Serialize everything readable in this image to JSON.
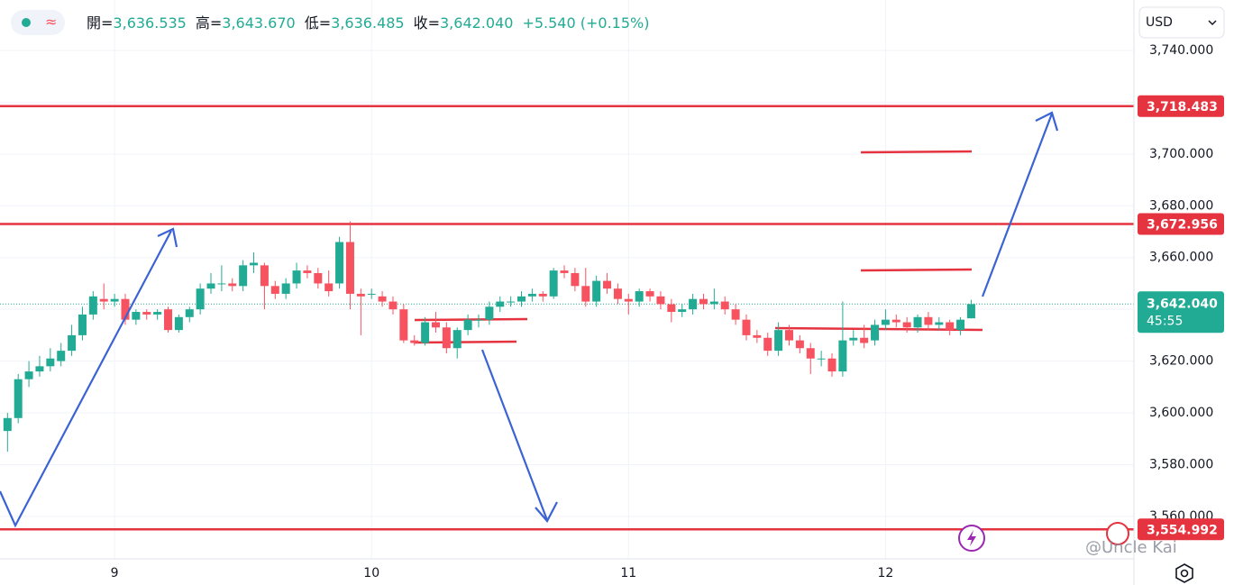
{
  "chart_data": {
    "type": "candlestick",
    "header": {
      "items": [
        {
          "label": "開=",
          "value": "3,636.535"
        },
        {
          "label": "高=",
          "value": "3,643.670"
        },
        {
          "label": "低=",
          "value": "3,636.485"
        },
        {
          "label": "收=",
          "value": "3,642.040"
        }
      ],
      "change": "+5.540 (+0.15%)"
    },
    "currency": "USD",
    "watermark": "@Uncle Kai",
    "up_color": "#22ab94",
    "down_color": "#f7525f",
    "level_color": "#e5333f",
    "x": [
      -10,
      -9,
      -8,
      -7,
      -6,
      -5,
      -4,
      -3,
      -2,
      -1,
      0,
      1,
      2,
      3,
      4,
      5,
      6,
      7,
      8,
      9,
      10,
      11,
      12,
      13,
      14,
      15,
      16,
      17,
      18,
      19,
      20,
      21,
      22,
      23,
      24,
      25,
      26,
      27,
      28,
      29,
      30,
      31,
      32,
      33,
      34,
      35,
      36,
      37,
      38,
      39,
      40,
      41,
      42,
      43,
      44,
      45,
      46,
      47,
      48,
      49,
      50,
      51,
      52,
      53,
      54,
      55,
      56,
      57,
      58,
      59,
      60,
      61,
      62,
      63,
      64,
      65,
      66,
      67,
      68,
      69,
      70,
      71,
      72,
      73,
      74,
      75,
      76,
      77,
      78,
      79,
      80
    ],
    "ohlc": [
      [
        3593,
        3600,
        3585,
        3598
      ],
      [
        3598,
        3615,
        3596,
        3613
      ],
      [
        3613,
        3620,
        3610,
        3616
      ],
      [
        3616,
        3622,
        3614,
        3618
      ],
      [
        3618,
        3625,
        3616,
        3621
      ],
      [
        3620,
        3627,
        3618,
        3624
      ],
      [
        3624,
        3634,
        3622,
        3630
      ],
      [
        3630,
        3641,
        3628,
        3638
      ],
      [
        3638,
        3647,
        3636,
        3645
      ],
      [
        3644,
        3650,
        3640,
        3643
      ],
      [
        3643,
        3646,
        3641,
        3644
      ],
      [
        3644,
        3646,
        3634,
        3636
      ],
      [
        3636,
        3640,
        3634,
        3639
      ],
      [
        3639,
        3640,
        3636,
        3638
      ],
      [
        3638,
        3640,
        3636,
        3639
      ],
      [
        3640,
        3641,
        3631,
        3632
      ],
      [
        3632,
        3638,
        3631,
        3637
      ],
      [
        3637,
        3641,
        3635,
        3640
      ],
      [
        3640,
        3650,
        3638,
        3648
      ],
      [
        3648,
        3654,
        3646,
        3650
      ],
      [
        3650,
        3657,
        3647,
        3650
      ],
      [
        3650,
        3652,
        3647,
        3649
      ],
      [
        3649,
        3659,
        3647,
        3657
      ],
      [
        3657,
        3662,
        3654,
        3658
      ],
      [
        3657,
        3658,
        3640,
        3649
      ],
      [
        3649,
        3651,
        3644,
        3646
      ],
      [
        3646,
        3652,
        3644,
        3650
      ],
      [
        3650,
        3658,
        3648,
        3655
      ],
      [
        3655,
        3657,
        3652,
        3654
      ],
      [
        3654,
        3656,
        3648,
        3650
      ],
      [
        3650,
        3655,
        3645,
        3647
      ],
      [
        3650,
        3668,
        3648,
        3666
      ],
      [
        3666,
        3674,
        3640,
        3646
      ],
      [
        3646,
        3648,
        3630,
        3645
      ],
      [
        3646,
        3648,
        3644,
        3646
      ],
      [
        3645,
        3647,
        3641,
        3643
      ],
      [
        3643,
        3645,
        3638,
        3640
      ],
      [
        3640,
        3642,
        3627,
        3628
      ],
      [
        3628,
        3630,
        3626,
        3627
      ],
      [
        3627,
        3637,
        3626,
        3635
      ],
      [
        3635,
        3639,
        3631,
        3633
      ],
      [
        3633,
        3635,
        3623,
        3625
      ],
      [
        3625,
        3633,
        3621,
        3632
      ],
      [
        3632,
        3638,
        3630,
        3636
      ],
      [
        3636,
        3638,
        3633,
        3636
      ],
      [
        3636,
        3643,
        3634,
        3641
      ],
      [
        3641,
        3645,
        3639,
        3643
      ],
      [
        3643,
        3645,
        3641,
        3643
      ],
      [
        3643,
        3647,
        3641,
        3645
      ],
      [
        3645,
        3648,
        3643,
        3646
      ],
      [
        3646,
        3647,
        3643,
        3645
      ],
      [
        3645,
        3656,
        3644,
        3655
      ],
      [
        3655,
        3657,
        3652,
        3654
      ],
      [
        3654,
        3656,
        3647,
        3649
      ],
      [
        3649,
        3656,
        3641,
        3643
      ],
      [
        3643,
        3653,
        3641,
        3651
      ],
      [
        3651,
        3654,
        3646,
        3648
      ],
      [
        3648,
        3650,
        3642,
        3644
      ],
      [
        3644,
        3646,
        3638,
        3643
      ],
      [
        3643,
        3648,
        3641,
        3647
      ],
      [
        3647,
        3648,
        3643,
        3645
      ],
      [
        3645,
        3647,
        3640,
        3642
      ],
      [
        3642,
        3644,
        3635,
        3639
      ],
      [
        3639,
        3642,
        3637,
        3640
      ],
      [
        3640,
        3646,
        3638,
        3644
      ],
      [
        3644,
        3646,
        3640,
        3642
      ],
      [
        3642,
        3648,
        3640,
        3643
      ],
      [
        3643,
        3645,
        3638,
        3640
      ],
      [
        3640,
        3642,
        3634,
        3636
      ],
      [
        3636,
        3638,
        3628,
        3630
      ],
      [
        3630,
        3632,
        3627,
        3629
      ],
      [
        3629,
        3631,
        3622,
        3624
      ],
      [
        3624,
        3635,
        3622,
        3632
      ],
      [
        3632,
        3634,
        3626,
        3628
      ],
      [
        3628,
        3630,
        3623,
        3625
      ],
      [
        3625,
        3627,
        3615,
        3621
      ],
      [
        3621,
        3624,
        3618,
        3621
      ],
      [
        3621,
        3623,
        3614,
        3616
      ],
      [
        3616,
        3643,
        3614,
        3628
      ],
      [
        3628,
        3632,
        3626,
        3629
      ],
      [
        3629,
        3634,
        3625,
        3627
      ],
      [
        3628,
        3636,
        3626,
        3634
      ],
      [
        3634,
        3640,
        3632,
        3636
      ],
      [
        3636,
        3638,
        3633,
        3635
      ],
      [
        3635,
        3637,
        3631,
        3633
      ],
      [
        3633,
        3638,
        3631,
        3637
      ],
      [
        3637,
        3639,
        3632,
        3634
      ],
      [
        3634,
        3637,
        3632,
        3635
      ],
      [
        3635,
        3636,
        3630,
        3632
      ],
      [
        3632,
        3637,
        3630,
        3636
      ],
      [
        3636.535,
        3643.67,
        3636.485,
        3642.04
      ]
    ],
    "levels": [
      {
        "value": 3718.483,
        "label": "3,718.483"
      },
      {
        "value": 3672.956,
        "label": "3,672.956"
      },
      {
        "value": 3554.992,
        "label": "3,554.992"
      }
    ],
    "last_price": {
      "value": 3642.04,
      "label": "3,642.040",
      "countdown": "45:55",
      "color": "#22ab94"
    },
    "xlim": [
      -10.7,
      95.2
    ],
    "xticks": [
      {
        "value": 0,
        "label": "9"
      },
      {
        "value": 24,
        "label": "10"
      },
      {
        "value": 48,
        "label": "11"
      },
      {
        "value": 72,
        "label": "12"
      }
    ],
    "ylim": [
      3543.6,
      3759.5
    ],
    "yticks": [
      {
        "value": 3560,
        "label": "3,560.000"
      },
      {
        "value": 3580,
        "label": "3,580.000"
      },
      {
        "value": 3600,
        "label": "3,600.000"
      },
      {
        "value": 3620,
        "label": "3,620.000"
      },
      {
        "value": 3640,
        "label": "3,640.000"
      },
      {
        "value": 3660,
        "label": "3,660.000"
      },
      {
        "value": 3680,
        "label": "3,680.000"
      },
      {
        "value": 3700,
        "label": "3,700.000"
      },
      {
        "value": 3720,
        "label": "3,720.000"
      },
      {
        "value": 3740,
        "label": "3,740.000"
      }
    ],
    "grid": true
  }
}
